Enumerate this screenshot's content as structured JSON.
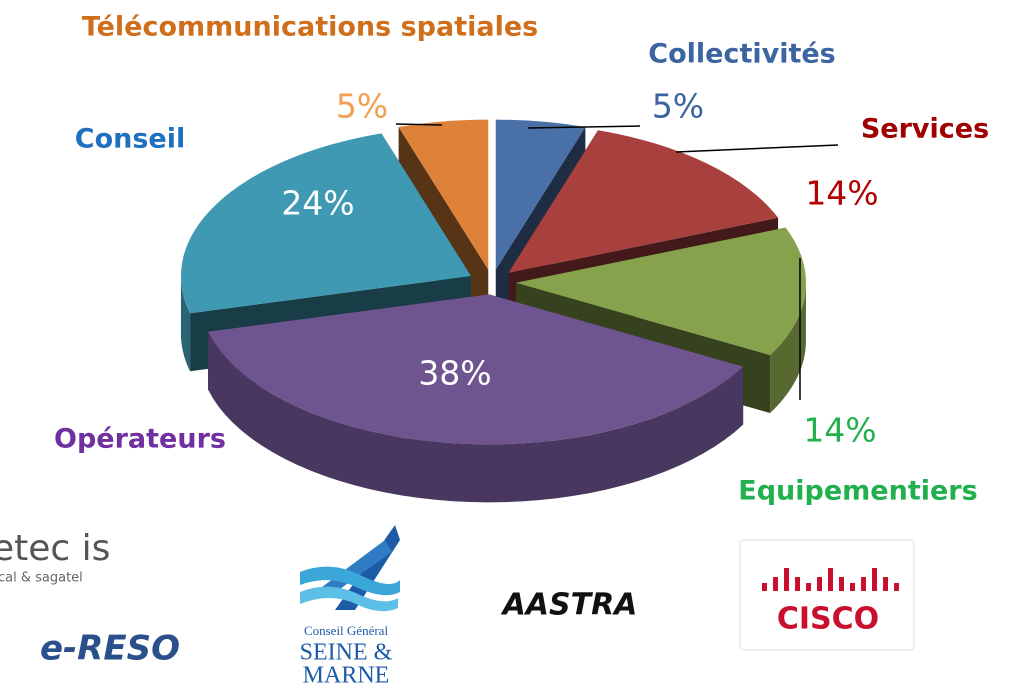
{
  "chart_data": {
    "type": "pie",
    "categories": [
      "Collectivités",
      "Services",
      "Equipementiers",
      "Opérateurs",
      "Conseil",
      "Télécommunications spatiales"
    ],
    "values": [
      5,
      14,
      14,
      38,
      24,
      5
    ],
    "value_labels": [
      "5%",
      "14%",
      "14%",
      "38%",
      "24%",
      "5%"
    ],
    "colors": [
      "#4a70a8",
      "#a8403e",
      "#86a24c",
      "#6f5590",
      "#3f99b2",
      "#dd8238"
    ],
    "label_colors": [
      "#3b64a0",
      "#a00000",
      "#22b04e",
      "#7030a0",
      "#2070c0",
      "#cf6f1c"
    ],
    "value_label_colors": [
      "#3b64a0",
      "#b00000",
      "#22b04e",
      "#ffffff",
      "#ffffff",
      "#f0a050"
    ]
  },
  "logos": {
    "setec": "etec is",
    "setec_sub": "cal & sagatel",
    "ereso": "e-RESO",
    "cg_line1": "Conseil Général",
    "cg_line2": "SEINE &",
    "cg_line3": "MARNE",
    "aastra": "AASTRA",
    "cisco": "CISCO"
  }
}
